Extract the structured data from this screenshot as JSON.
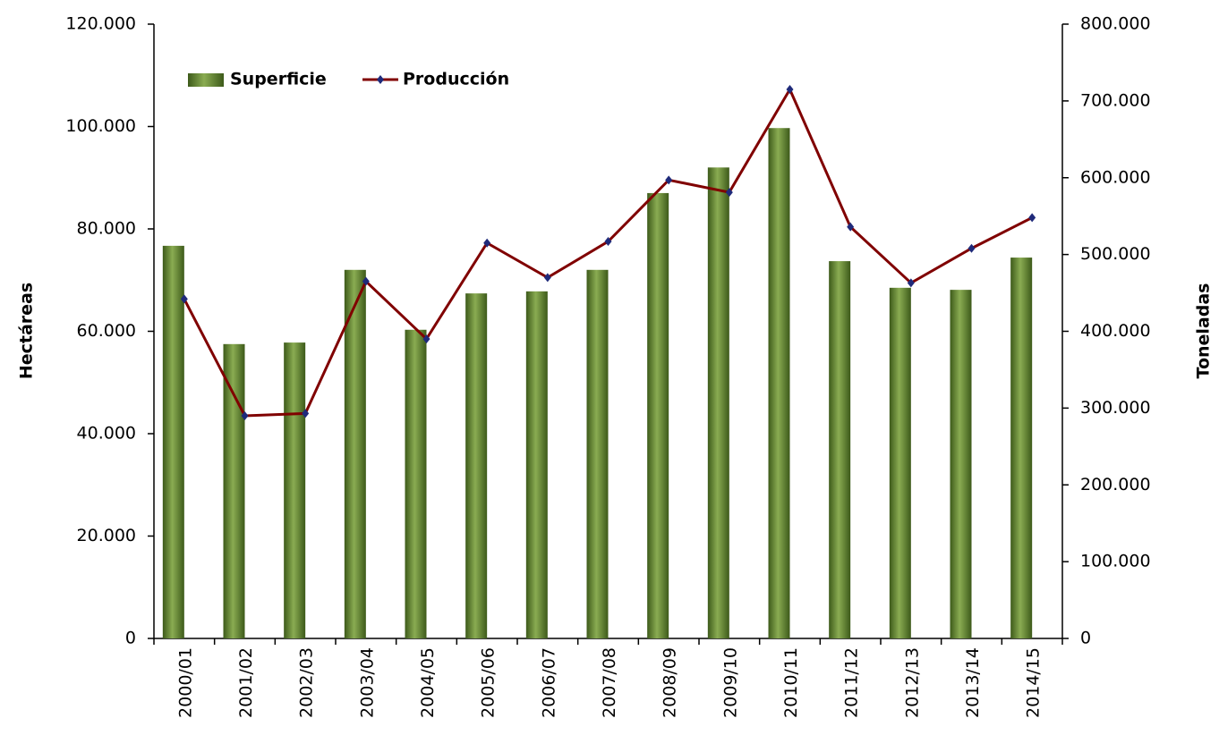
{
  "chart_data": {
    "type": "bar-line",
    "y_label": "Hectáreas",
    "y2_label": "Toneladas",
    "categories": [
      "2000/01",
      "2001/02",
      "2002/03",
      "2003/04",
      "2004/05",
      "2005/06",
      "2006/07",
      "2007/08",
      "2008/09",
      "2009/10",
      "2010/11",
      "2011/12",
      "2012/13",
      "2013/14",
      "2014/15"
    ],
    "series": [
      {
        "name": "Superficie",
        "type": "bar",
        "color": "#8aac52",
        "values": [
          76700,
          57500,
          57800,
          72000,
          60300,
          67400,
          67800,
          72000,
          87000,
          92000,
          99700,
          73700,
          68500,
          68100,
          74400
        ]
      },
      {
        "name": "Producción",
        "type": "line",
        "axis": "y2",
        "color": "#800000",
        "marker_color": "#1f2a7a",
        "values": [
          442000,
          290000,
          293000,
          465000,
          390000,
          515000,
          470000,
          517000,
          597000,
          581000,
          715000,
          536000,
          463000,
          508000,
          548000
        ]
      }
    ],
    "ylim": [
      0,
      120000
    ],
    "yticks": [
      0,
      {
        "value": 20000,
        "label": "20.000"
      },
      {
        "value": 40000,
        "label": "40.000"
      },
      {
        "value": 60000,
        "label": "60.000"
      },
      {
        "value": 80000,
        "label": "80.000"
      },
      {
        "value": 100000,
        "label": "100.000"
      },
      {
        "value": 120000,
        "label": "120.000"
      }
    ],
    "y2lim": [
      0,
      800000
    ],
    "y2ticks": [
      0,
      {
        "value": 100000,
        "label": "100.000"
      },
      {
        "value": 200000,
        "label": "200.000"
      },
      {
        "value": 300000,
        "label": "300.000"
      },
      {
        "value": 400000,
        "label": "400.000"
      },
      {
        "value": 500000,
        "label": "500.000"
      },
      {
        "value": 600000,
        "label": "600.000"
      },
      {
        "value": 700000,
        "label": "700.000"
      },
      {
        "value": 800000,
        "label": "800.000"
      }
    ],
    "grid": false,
    "legend": "top-left"
  }
}
